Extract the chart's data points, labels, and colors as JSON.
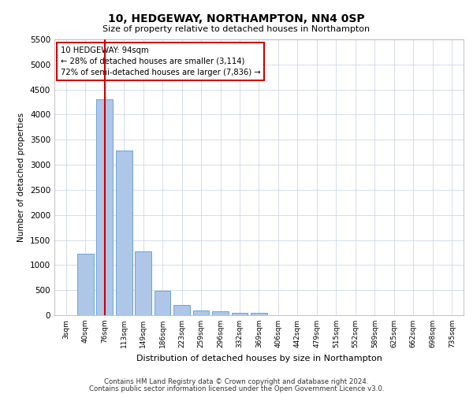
{
  "title": "10, HEDGEWAY, NORTHAMPTON, NN4 0SP",
  "subtitle": "Size of property relative to detached houses in Northampton",
  "xlabel": "Distribution of detached houses by size in Northampton",
  "ylabel": "Number of detached properties",
  "categories": [
    "3sqm",
    "40sqm",
    "76sqm",
    "113sqm",
    "149sqm",
    "186sqm",
    "223sqm",
    "259sqm",
    "296sqm",
    "332sqm",
    "369sqm",
    "406sqm",
    "442sqm",
    "479sqm",
    "515sqm",
    "552sqm",
    "589sqm",
    "625sqm",
    "662sqm",
    "698sqm",
    "735sqm"
  ],
  "bar_values": [
    0,
    1220,
    4300,
    3280,
    1280,
    480,
    200,
    100,
    80,
    55,
    50,
    0,
    0,
    0,
    0,
    0,
    0,
    0,
    0,
    0,
    0
  ],
  "bar_color": "#aec6e8",
  "bar_edge_color": "#5b9bd5",
  "red_line_index": 2,
  "annotation_line1": "10 HEDGEWAY: 94sqm",
  "annotation_line2": "← 28% of detached houses are smaller (3,114)",
  "annotation_line3": "72% of semi-detached houses are larger (7,836) →",
  "annotation_box_color": "#ffffff",
  "annotation_box_edge_color": "#cc0000",
  "ylim": [
    0,
    5500
  ],
  "yticks": [
    0,
    500,
    1000,
    1500,
    2000,
    2500,
    3000,
    3500,
    4000,
    4500,
    5000,
    5500
  ],
  "red_line_color": "#cc0000",
  "footer1": "Contains HM Land Registry data © Crown copyright and database right 2024.",
  "footer2": "Contains public sector information licensed under the Open Government Licence v3.0.",
  "background_color": "#ffffff",
  "grid_color": "#d0d8e8"
}
